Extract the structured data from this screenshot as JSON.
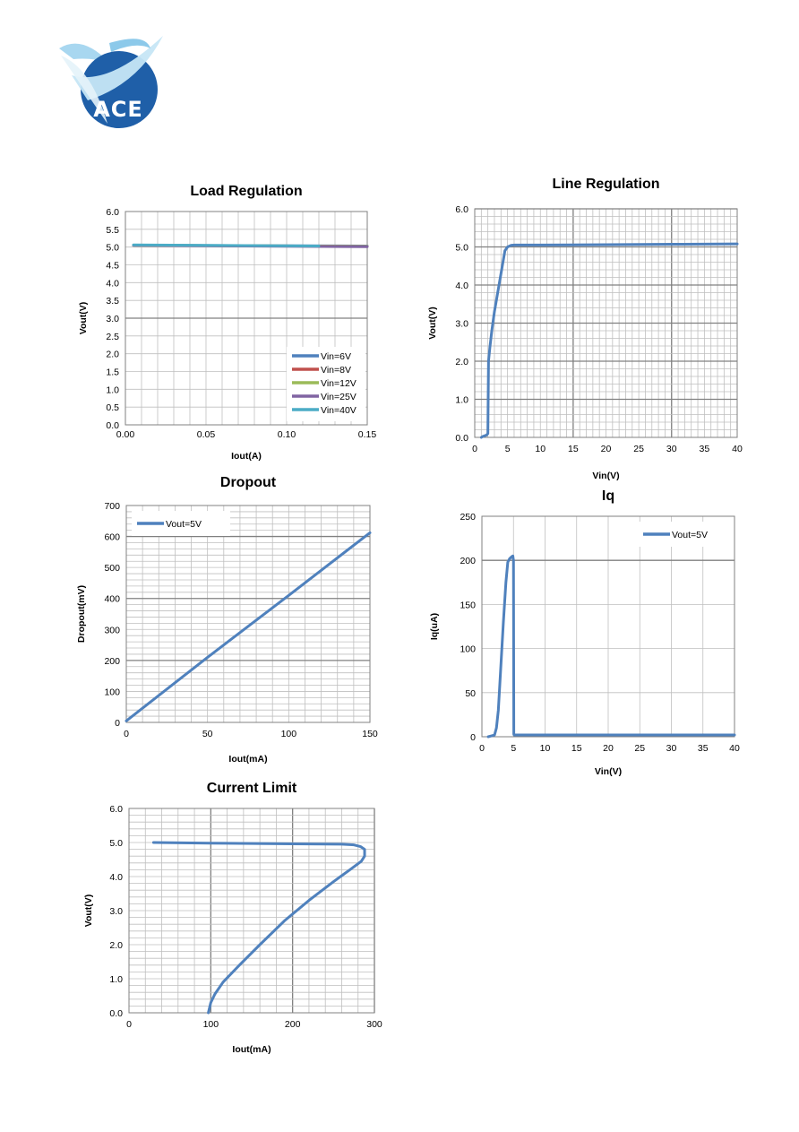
{
  "logo": {
    "text": "ACE"
  },
  "chart_data": [
    {
      "id": "load",
      "type": "line",
      "title": "Load Regulation",
      "xlabel": "Iout(A)",
      "ylabel": "Vout(V)",
      "xlim": [
        0,
        0.15
      ],
      "ylim": [
        0,
        6
      ],
      "xticks": [
        0,
        0.05,
        0.1,
        0.15
      ],
      "xtick_labels": [
        "0.00",
        "0.05",
        "0.10",
        "0.15"
      ],
      "yticks": [
        0,
        0.5,
        1,
        1.5,
        2,
        2.5,
        3,
        3.5,
        4,
        4.5,
        5,
        5.5,
        6
      ],
      "ytick_labels": [
        "0.0",
        "0.5",
        "1.0",
        "1.5",
        "2.0",
        "2.5",
        "3.0",
        "3.5",
        "4.0",
        "4.5",
        "5.0",
        "5.5",
        "6.0"
      ],
      "minor_x": 0.01,
      "minor_y": 0.5,
      "grid": true,
      "legend_position": "bottom-right",
      "series": [
        {
          "name": "Vin=6V",
          "color": "#4F81BD",
          "x": [
            0.005,
            0.15
          ],
          "y": [
            5.05,
            5.03
          ]
        },
        {
          "name": "Vin=8V",
          "color": "#C0504D",
          "x": [
            0.005,
            0.15
          ],
          "y": [
            5.05,
            5.02
          ]
        },
        {
          "name": "Vin=12V",
          "color": "#9BBB59",
          "x": [
            0.005,
            0.15
          ],
          "y": [
            5.05,
            5.02
          ]
        },
        {
          "name": "Vin=25V",
          "color": "#8064A2",
          "x": [
            0.005,
            0.15
          ],
          "y": [
            5.05,
            5.01
          ]
        },
        {
          "name": "Vin=40V",
          "color": "#4BACC6",
          "x": [
            0.005,
            0.12
          ],
          "y": [
            5.06,
            5.03
          ]
        }
      ]
    },
    {
      "id": "line",
      "type": "line",
      "title": "Line Regulation",
      "xlabel": "Vin(V)",
      "ylabel": "Vout(V)",
      "xlim": [
        0,
        40
      ],
      "ylim": [
        0,
        6
      ],
      "xticks": [
        0,
        5,
        10,
        15,
        20,
        25,
        30,
        35,
        40
      ],
      "xtick_labels": [
        "0",
        "5",
        "10",
        "15",
        "20",
        "25",
        "30",
        "35",
        "40"
      ],
      "yticks": [
        0,
        1,
        2,
        3,
        4,
        5,
        6
      ],
      "ytick_labels": [
        "0.0",
        "1.0",
        "2.0",
        "3.0",
        "4.0",
        "5.0",
        "6.0"
      ],
      "minor_x": 1,
      "minor_y": 0.2,
      "major_x_grid": 15,
      "major_y_grid": 1,
      "grid": true,
      "series": [
        {
          "name": "",
          "color": "#4F81BD",
          "x": [
            1,
            1.3,
            1.8,
            2.0,
            2.1,
            2.3,
            2.6,
            3.0,
            3.5,
            4.0,
            4.6,
            5.0,
            5.5,
            6.0,
            10,
            20,
            30,
            40
          ],
          "y": [
            0,
            0.03,
            0.06,
            0.1,
            2.0,
            2.35,
            2.8,
            3.3,
            3.8,
            4.3,
            4.9,
            5.0,
            5.04,
            5.05,
            5.05,
            5.06,
            5.07,
            5.08
          ]
        }
      ]
    },
    {
      "id": "dropout",
      "type": "line",
      "title": "Dropout",
      "xlabel": "Iout(mA)",
      "ylabel": "Dropout(mV)",
      "xlim": [
        0,
        150
      ],
      "ylim": [
        0,
        700
      ],
      "xticks": [
        0,
        50,
        100,
        150
      ],
      "xtick_labels": [
        "0",
        "50",
        "100",
        "150"
      ],
      "yticks": [
        0,
        100,
        200,
        300,
        400,
        500,
        600,
        700
      ],
      "ytick_labels": [
        "0",
        "100",
        "200",
        "300",
        "400",
        "500",
        "600",
        "700"
      ],
      "minor_x": 10,
      "minor_y": 20,
      "major_y_grid": 200,
      "grid": true,
      "legend_position": "top-left",
      "series": [
        {
          "name": "Vout=5V",
          "color": "#4F81BD",
          "x": [
            0,
            50,
            100,
            150
          ],
          "y": [
            5,
            210,
            410,
            612
          ]
        }
      ]
    },
    {
      "id": "iq",
      "type": "line",
      "title": "Iq",
      "xlabel": "Vin(V)",
      "ylabel": "Iq(uA)",
      "xlim": [
        0,
        40
      ],
      "ylim": [
        0,
        250
      ],
      "xticks": [
        0,
        5,
        10,
        15,
        20,
        25,
        30,
        35,
        40
      ],
      "xtick_labels": [
        "0",
        "5",
        "10",
        "15",
        "20",
        "25",
        "30",
        "35",
        "40"
      ],
      "yticks": [
        0,
        50,
        100,
        150,
        200,
        250
      ],
      "ytick_labels": [
        "0",
        "50",
        "100",
        "150",
        "200",
        "250"
      ],
      "minor_x": 5,
      "minor_y": 50,
      "major_y_grid": 200,
      "grid": true,
      "legend_position": "top-right",
      "series": [
        {
          "name": "Vout=5V",
          "color": "#4F81BD",
          "x": [
            1,
            1.5,
            2,
            2.3,
            2.6,
            3.0,
            3.4,
            3.8,
            4.1,
            4.4,
            4.7,
            4.9,
            5.0,
            5.05,
            5.1,
            10,
            20,
            30,
            40
          ],
          "y": [
            0,
            1,
            2,
            10,
            30,
            80,
            130,
            175,
            198,
            202,
            204,
            205,
            200,
            3,
            2,
            2,
            2,
            2,
            2
          ]
        }
      ]
    },
    {
      "id": "climit",
      "type": "line",
      "title": "Current Limit",
      "xlabel": "Iout(mA)",
      "ylabel": "Vout(V)",
      "xlim": [
        0,
        300
      ],
      "ylim": [
        0,
        6
      ],
      "xticks": [
        0,
        100,
        200,
        300
      ],
      "xtick_labels": [
        "0",
        "100",
        "200",
        "300"
      ],
      "yticks": [
        0,
        1,
        2,
        3,
        4,
        5,
        6
      ],
      "ytick_labels": [
        "0.0",
        "1.0",
        "2.0",
        "3.0",
        "4.0",
        "5.0",
        "6.0"
      ],
      "minor_x": 20,
      "minor_y": 0.2,
      "major_x_grid": 100,
      "grid": true,
      "series": [
        {
          "name": "",
          "color": "#4F81BD",
          "x": [
            30,
            100,
            200,
            260,
            275,
            283,
            288,
            288,
            284,
            270,
            250,
            220,
            190,
            160,
            135,
            115,
            105,
            100,
            97
          ],
          "y": [
            5.0,
            4.98,
            4.96,
            4.95,
            4.93,
            4.88,
            4.8,
            4.6,
            4.45,
            4.2,
            3.85,
            3.3,
            2.7,
            2.0,
            1.4,
            0.9,
            0.55,
            0.3,
            0.0
          ]
        }
      ]
    }
  ]
}
